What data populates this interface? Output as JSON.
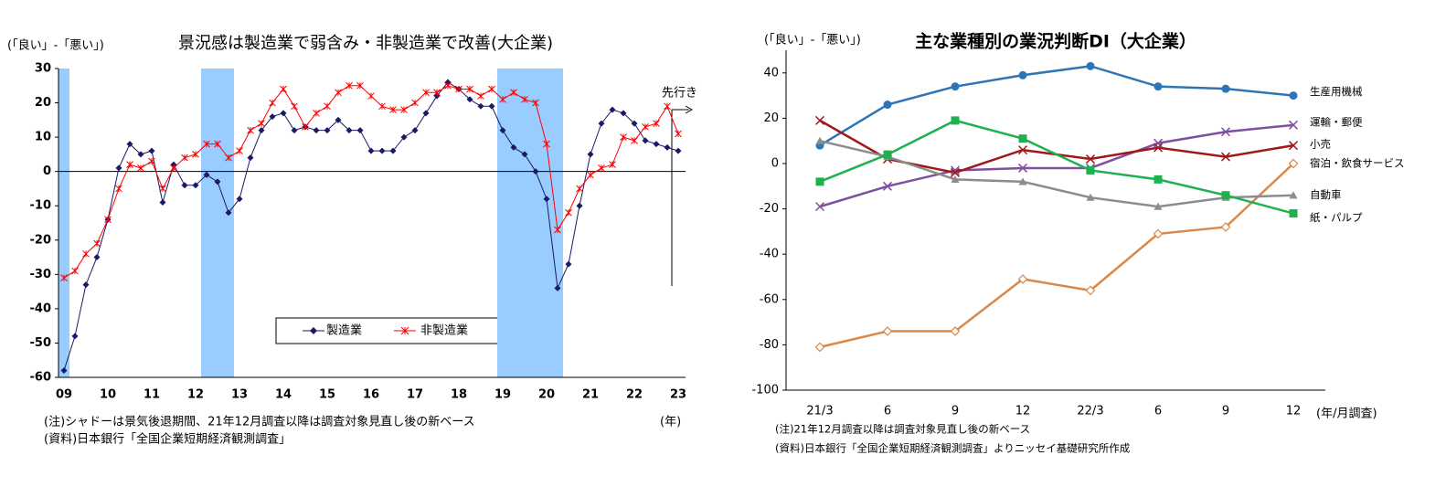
{
  "chart_data": [
    {
      "type": "line",
      "title": "景況感は製造業で弱含み・非製造業で改善(大企業)",
      "ylabel": "(「良い」-「悪い」)",
      "xlabel": "(年)",
      "annotation": "先行き",
      "notes": [
        "(注)シャドーは景気後退期間、21年12月調査以降は調査対象見直し後の新ベース",
        "(資料)日本銀行「全国企業短期経済観測調査」"
      ],
      "categories": [
        "09",
        null,
        null,
        null,
        "10",
        null,
        null,
        null,
        "11",
        null,
        null,
        null,
        "12",
        null,
        null,
        null,
        "13",
        null,
        null,
        null,
        "14",
        null,
        null,
        null,
        "15",
        null,
        null,
        null,
        "16",
        null,
        null,
        null,
        "17",
        null,
        null,
        null,
        "18",
        null,
        null,
        null,
        "19",
        null,
        null,
        null,
        "20",
        null,
        null,
        null,
        "21",
        null,
        null,
        null,
        "22",
        null,
        null,
        null,
        "23"
      ],
      "series": [
        {
          "name": "製造業",
          "color": "#1a1a66",
          "marker": "diamond",
          "values": [
            -58,
            -48,
            -33,
            -25,
            -14,
            1,
            8,
            5,
            6,
            -9,
            2,
            -4,
            -4,
            -1,
            -3,
            -12,
            -8,
            4,
            12,
            16,
            17,
            12,
            13,
            12,
            12,
            15,
            12,
            12,
            6,
            6,
            6,
            10,
            12,
            17,
            22,
            26,
            24,
            21,
            19,
            19,
            12,
            7,
            5,
            0,
            -8,
            -34,
            -27,
            -10,
            5,
            14,
            18,
            17,
            14,
            9,
            8,
            7,
            6
          ]
        },
        {
          "name": "非製造業",
          "color": "#ff0000",
          "marker": "asterisk",
          "values": [
            -31,
            -29,
            -24,
            -21,
            -14,
            -5,
            2,
            1,
            3,
            -5,
            1,
            4,
            5,
            8,
            8,
            4,
            6,
            12,
            14,
            20,
            24,
            19,
            13,
            17,
            19,
            23,
            25,
            25,
            22,
            19,
            18,
            18,
            20,
            23,
            23,
            25,
            24,
            24,
            22,
            24,
            21,
            23,
            21,
            20,
            8,
            -17,
            -12,
            -5,
            -1,
            1,
            2,
            10,
            9,
            13,
            14,
            19,
            11
          ]
        }
      ],
      "shaded_spans": [
        [
          0,
          0
        ],
        [
          13,
          15
        ],
        [
          40,
          45
        ]
      ],
      "shade_color": "#99ccff",
      "ylim": [
        -60,
        30
      ],
      "yticks": [
        -60,
        -50,
        -40,
        -30,
        -20,
        -10,
        0,
        10,
        20,
        30
      ],
      "zero_line": true,
      "legend": "inside-bottom"
    },
    {
      "type": "line",
      "title": "主な業種別の業況判断DI（大企業）",
      "ylabel": "(「良い」-「悪い」)",
      "xlabel": "(年/月調査)",
      "notes": [
        "(注)21年12月調査以降は調査対象見直し後の新ベース",
        "(資料)日本銀行「全国企業短期経済観測調査」よりニッセイ基礎研究所作成"
      ],
      "categories": [
        "21/3",
        "6",
        "9",
        "12",
        "22/3",
        "6",
        "9",
        "12"
      ],
      "series": [
        {
          "name": "生産用機械",
          "color": "#2e75b6",
          "marker": "circle",
          "values": [
            8,
            26,
            34,
            39,
            43,
            34,
            33,
            30
          ]
        },
        {
          "name": "運輸・郵便",
          "color": "#7f4fa0",
          "marker": "x",
          "values": [
            -19,
            -10,
            -3,
            -2,
            -2,
            9,
            14,
            17
          ]
        },
        {
          "name": "小売",
          "color": "#a01818",
          "marker": "x",
          "values": [
            19,
            2,
            -4,
            6,
            2,
            7,
            3,
            8
          ]
        },
        {
          "name": "宿泊・飲食サービス",
          "color": "#d9894a",
          "marker": "diamond-open",
          "values": [
            -81,
            -74,
            -74,
            -51,
            -56,
            -31,
            -28,
            0
          ]
        },
        {
          "name": "自動車",
          "color": "#8c8c8c",
          "marker": "triangle",
          "values": [
            10,
            3,
            -7,
            -8,
            -15,
            -19,
            -15,
            -14
          ]
        },
        {
          "name": "紙・パルプ",
          "color": "#1fb050",
          "marker": "square",
          "values": [
            -8,
            4,
            19,
            11,
            -3,
            -7,
            -14,
            -22
          ]
        }
      ],
      "ylim": [
        -100,
        50
      ],
      "yticks": [
        -100,
        -80,
        -60,
        -40,
        -20,
        0,
        20,
        40
      ],
      "legend": "line-ends"
    }
  ]
}
